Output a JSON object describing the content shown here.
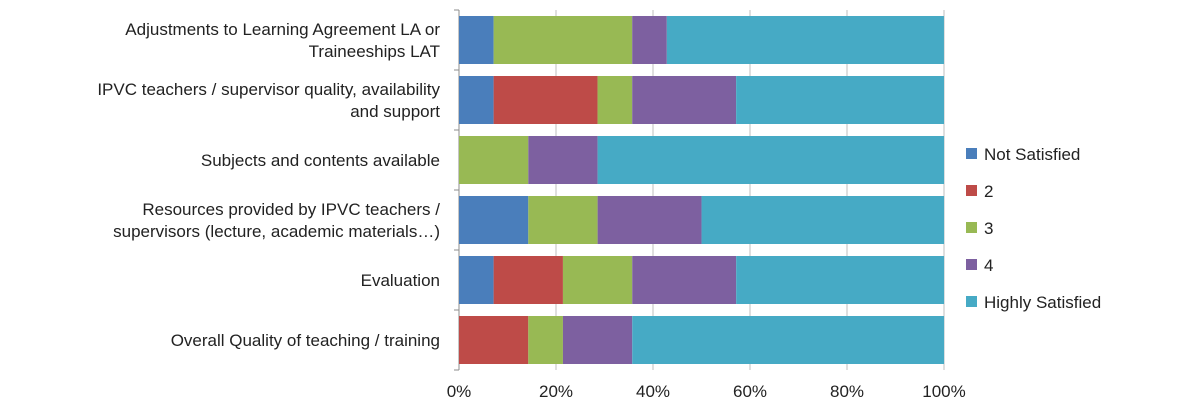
{
  "chart_data": {
    "type": "bar",
    "orientation": "horizontal",
    "stacked": "percent",
    "categories": [
      [
        "Adjustments to Learning Agreement LA or",
        "Traineeships LAT"
      ],
      [
        "IPVC teachers / supervisor quality, availability",
        "and support"
      ],
      [
        "Subjects and contents available"
      ],
      [
        "Resources provided by IPVC teachers /",
        "supervisors (lecture, academic materials…)"
      ],
      [
        "Evaluation"
      ],
      [
        "Overall Quality of teaching / training"
      ]
    ],
    "series": [
      {
        "name": "Not Satisfied",
        "color": "#4A7EBB",
        "values": [
          7.14,
          7.14,
          0,
          14.29,
          7.14,
          0
        ]
      },
      {
        "name": "2",
        "color": "#BE4B48",
        "values": [
          0,
          21.43,
          0,
          0,
          14.29,
          14.29
        ]
      },
      {
        "name": "3",
        "color": "#98B954",
        "values": [
          28.57,
          7.14,
          14.29,
          14.29,
          14.29,
          7.14
        ]
      },
      {
        "name": "4",
        "color": "#7D60A0",
        "values": [
          7.14,
          21.43,
          14.29,
          21.43,
          21.43,
          14.29
        ]
      },
      {
        "name": "Highly Satisfied",
        "color": "#46AAC5",
        "values": [
          57.14,
          42.86,
          71.43,
          50.0,
          42.86,
          64.29
        ]
      }
    ],
    "x_ticks": [
      "0%",
      "20%",
      "40%",
      "60%",
      "80%",
      "100%"
    ],
    "xlim": [
      0,
      100
    ],
    "grid": "vertical",
    "gridline_color": "#BFBFBF",
    "legend_position": "right",
    "title": "",
    "xlabel": "",
    "ylabel": ""
  }
}
